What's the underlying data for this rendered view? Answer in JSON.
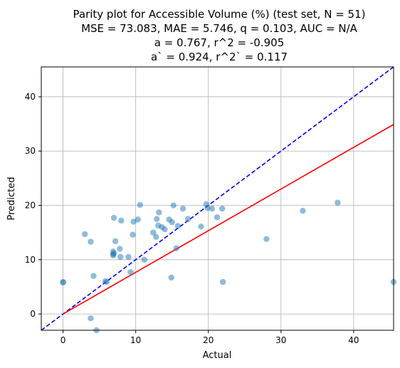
{
  "chart_data": {
    "type": "scatter",
    "title_lines": [
      "Parity plot for Accessible Volume (%) (test set, N = 51)",
      "MSE = 73.083, MAE = 5.746, q = 0.103, AUC = N/A",
      "a = 0.767, r^2 = -0.905",
      "a` = 0.924, r^2` = 0.117"
    ],
    "xlabel": "Actual",
    "ylabel": "Predicted",
    "xlim": [
      -3,
      45.5
    ],
    "ylim": [
      -3,
      45.5
    ],
    "xticks": [
      0,
      10,
      20,
      30,
      40
    ],
    "yticks": [
      0,
      10,
      20,
      30,
      40
    ],
    "grid": true,
    "point_color": "#1f77b4",
    "parity_line": {
      "slope": 1.0,
      "intercept": 0,
      "color": "#0000ff",
      "style": "dashed"
    },
    "fit_line": {
      "slope": 0.767,
      "intercept": 0,
      "x_range": [
        0,
        45.5
      ],
      "color": "#ff0000"
    },
    "points": [
      {
        "x": 0,
        "y": 5.9
      },
      {
        "x": 0,
        "y": 5.8
      },
      {
        "x": 3,
        "y": 14.7
      },
      {
        "x": 3.8,
        "y": 13.3
      },
      {
        "x": 3.8,
        "y": -0.8
      },
      {
        "x": 4.2,
        "y": 7.0
      },
      {
        "x": 4.6,
        "y": -3.0
      },
      {
        "x": 5.8,
        "y": 6.0
      },
      {
        "x": 6.0,
        "y": 5.9
      },
      {
        "x": 6.9,
        "y": 11.0
      },
      {
        "x": 6.9,
        "y": 11.5
      },
      {
        "x": 6.9,
        "y": 10.8
      },
      {
        "x": 7.0,
        "y": 17.7
      },
      {
        "x": 7.2,
        "y": 13.4
      },
      {
        "x": 7.8,
        "y": 12.0
      },
      {
        "x": 7.9,
        "y": 10.5
      },
      {
        "x": 8.0,
        "y": 17.2
      },
      {
        "x": 9.0,
        "y": 10.5
      },
      {
        "x": 9.3,
        "y": 7.7
      },
      {
        "x": 9.6,
        "y": 14.6
      },
      {
        "x": 9.7,
        "y": 17.0
      },
      {
        "x": 10.3,
        "y": 17.4
      },
      {
        "x": 10.6,
        "y": 20.1
      },
      {
        "x": 11.2,
        "y": 10.0
      },
      {
        "x": 12.4,
        "y": 15.0
      },
      {
        "x": 12.8,
        "y": 14.2
      },
      {
        "x": 12.9,
        "y": 17.5
      },
      {
        "x": 13.1,
        "y": 16.3
      },
      {
        "x": 13.2,
        "y": 18.7
      },
      {
        "x": 13.6,
        "y": 16.0
      },
      {
        "x": 14.0,
        "y": 15.6
      },
      {
        "x": 14.6,
        "y": 17.4
      },
      {
        "x": 14.9,
        "y": 6.7
      },
      {
        "x": 15.0,
        "y": 16.9
      },
      {
        "x": 15.2,
        "y": 20.0
      },
      {
        "x": 15.6,
        "y": 12.1
      },
      {
        "x": 15.8,
        "y": 16.2
      },
      {
        "x": 16.5,
        "y": 19.4
      },
      {
        "x": 17.2,
        "y": 17.5
      },
      {
        "x": 19.0,
        "y": 16.1
      },
      {
        "x": 19.7,
        "y": 20.2
      },
      {
        "x": 19.9,
        "y": 19.5
      },
      {
        "x": 20.5,
        "y": 19.4
      },
      {
        "x": 21.2,
        "y": 17.8
      },
      {
        "x": 21.9,
        "y": 19.4
      },
      {
        "x": 22.0,
        "y": 5.9
      },
      {
        "x": 28.0,
        "y": 13.8
      },
      {
        "x": 33.0,
        "y": 19.0
      },
      {
        "x": 37.8,
        "y": 20.5
      },
      {
        "x": 45.5,
        "y": 5.9
      },
      {
        "x": 7.0,
        "y": 11.2
      }
    ]
  }
}
